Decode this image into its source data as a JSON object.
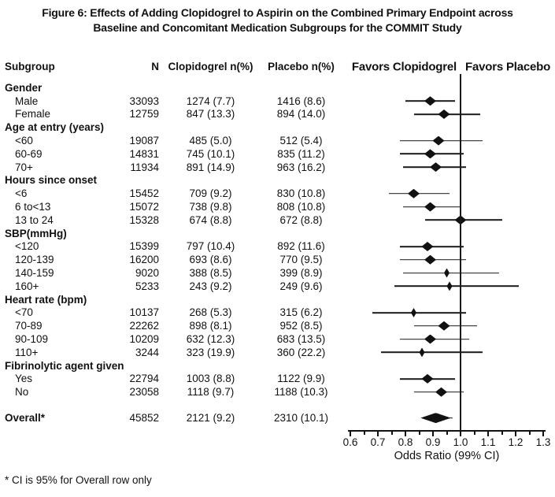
{
  "title": {
    "line1": "Figure 6: Effects of Adding Clopidogrel to Aspirin on the Combined Primary Endpoint across",
    "line2": "Baseline and Concomitant Medication Subgroups for the COMMIT Study"
  },
  "columns": {
    "subgroup": "Subgroup",
    "n": "N",
    "clopidogrel": "Clopidogrel n(%)",
    "placebo": "Placebo n(%)"
  },
  "favors": {
    "left": "Favors Clopidogrel",
    "right": "Favors Placebo"
  },
  "axis": {
    "label": "Odds Ratio (99% CI)",
    "min": 0.6,
    "max": 1.3,
    "major_ticks": [
      0.6,
      0.7,
      0.8,
      0.9,
      1.0,
      1.1,
      1.2,
      1.3
    ],
    "minor_step": 0.05,
    "reference": 1.0
  },
  "rows": [
    {
      "type": "group",
      "label": "Gender"
    },
    {
      "type": "item",
      "label": "Male",
      "n": "33093",
      "clopidogrel": "1274 (7.7)",
      "placebo": "1416 (8.6)",
      "or": 0.89,
      "lo": 0.8,
      "hi": 0.98,
      "size": "l"
    },
    {
      "type": "item",
      "label": "Female",
      "n": "12759",
      "clopidogrel": "847 (13.3)",
      "placebo": "894 (14.0)",
      "or": 0.94,
      "lo": 0.83,
      "hi": 1.07,
      "size": "l"
    },
    {
      "type": "group",
      "label": "Age at entry (years)"
    },
    {
      "type": "item",
      "label": "<60",
      "n": "19087",
      "clopidogrel": "485 (5.0)",
      "placebo": "512 (5.4)",
      "or": 0.92,
      "lo": 0.78,
      "hi": 1.08,
      "size": "l"
    },
    {
      "type": "item",
      "label": "60-69",
      "n": "14831",
      "clopidogrel": "745 (10.1)",
      "placebo": "835 (11.2)",
      "or": 0.89,
      "lo": 0.78,
      "hi": 1.01,
      "size": "l"
    },
    {
      "type": "item",
      "label": "70+",
      "n": "11934",
      "clopidogrel": "891 (14.9)",
      "placebo": "963 (16.2)",
      "or": 0.91,
      "lo": 0.79,
      "hi": 1.02,
      "size": "l"
    },
    {
      "type": "group",
      "label": "Hours since onset"
    },
    {
      "type": "item",
      "label": "<6",
      "n": "15452",
      "clopidogrel": "709 (9.2)",
      "placebo": "830 (10.8)",
      "or": 0.83,
      "lo": 0.74,
      "hi": 0.96,
      "size": "l"
    },
    {
      "type": "item",
      "label": "6 to<13",
      "n": "15072",
      "clopidogrel": "738 (9.8)",
      "placebo": "808 (10.8)",
      "or": 0.89,
      "lo": 0.79,
      "hi": 1.0,
      "size": "l"
    },
    {
      "type": "item",
      "label": "13 to 24",
      "n": "15328",
      "clopidogrel": "674 (8.8)",
      "placebo": "672 (8.8)",
      "or": 1.0,
      "lo": 0.87,
      "hi": 1.15,
      "size": "l"
    },
    {
      "type": "group",
      "label": "SBP(mmHg)"
    },
    {
      "type": "item",
      "label": "<120",
      "n": "15399",
      "clopidogrel": "797 (10.4)",
      "placebo": "892 (11.6)",
      "or": 0.88,
      "lo": 0.78,
      "hi": 1.01,
      "size": "l"
    },
    {
      "type": "item",
      "label": "120-139",
      "n": "16200",
      "clopidogrel": "693 (8.6)",
      "placebo": "770 (9.5)",
      "or": 0.89,
      "lo": 0.78,
      "hi": 1.02,
      "size": "l"
    },
    {
      "type": "item",
      "label": "140-159",
      "n": "9020",
      "clopidogrel": "388 (8.5)",
      "placebo": "399 (8.9)",
      "or": 0.95,
      "lo": 0.79,
      "hi": 1.14,
      "size": "s"
    },
    {
      "type": "item",
      "label": "160+",
      "n": "5233",
      "clopidogrel": "243 (9.2)",
      "placebo": "249 (9.6)",
      "or": 0.96,
      "lo": 0.76,
      "hi": 1.21,
      "size": "s"
    },
    {
      "type": "group",
      "label": "Heart rate (bpm)"
    },
    {
      "type": "item",
      "label": "<70",
      "n": "10137",
      "clopidogrel": "268 (5.3)",
      "placebo": "315 (6.2)",
      "or": 0.83,
      "lo": 0.68,
      "hi": 1.02,
      "size": "s"
    },
    {
      "type": "item",
      "label": "70-89",
      "n": "22262",
      "clopidogrel": "898 (8.1)",
      "placebo": "952 (8.5)",
      "or": 0.94,
      "lo": 0.83,
      "hi": 1.06,
      "size": "l"
    },
    {
      "type": "item",
      "label": "90-109",
      "n": "10209",
      "clopidogrel": "632 (12.3)",
      "placebo": "683 (13.5)",
      "or": 0.89,
      "lo": 0.78,
      "hi": 1.03,
      "size": "l"
    },
    {
      "type": "item",
      "label": "110+",
      "n": "3244",
      "clopidogrel": "323 (19.9)",
      "placebo": "360 (22.2)",
      "or": 0.86,
      "lo": 0.71,
      "hi": 1.08,
      "size": "s"
    },
    {
      "type": "group",
      "label": "Fibrinolytic agent given"
    },
    {
      "type": "item",
      "label": "Yes",
      "n": "22794",
      "clopidogrel": "1003 (8.8)",
      "placebo": "1122 (9.9)",
      "or": 0.88,
      "lo": 0.78,
      "hi": 0.98,
      "size": "l"
    },
    {
      "type": "item",
      "label": "No",
      "n": "23058",
      "clopidogrel": "1118 (9.7)",
      "placebo": "1188 (10.3)",
      "or": 0.93,
      "lo": 0.83,
      "hi": 1.01,
      "size": "l"
    }
  ],
  "overall": {
    "label": "Overall*",
    "n": "45852",
    "clopidogrel": "2121 (9.2)",
    "placebo": "2310 (10.1)",
    "or": 0.91,
    "lo": 0.86,
    "hi": 0.97
  },
  "footnote": "* CI is 95% for Overall row only",
  "colors": {
    "ink": "#111111",
    "background": "#ffffff"
  },
  "chart_data": {
    "type": "scatter",
    "variant": "forest-plot",
    "title": "Figure 6: Effects of Adding Clopidogrel to Aspirin on the Combined Primary Endpoint across Baseline and Concomitant Medication Subgroups for the COMMIT Study",
    "xlabel": "Odds Ratio (99% CI)",
    "xlim": [
      0.6,
      1.3
    ],
    "x_ticks": [
      0.6,
      0.7,
      0.8,
      0.9,
      1.0,
      1.1,
      1.2,
      1.3
    ],
    "reference_line": 1.0,
    "favors_left": "Favors Clopidogrel",
    "favors_right": "Favors Placebo",
    "legend_position": "none",
    "grid": false,
    "ci_level_note": "99% CI for subgroups; 95% CI for Overall row only",
    "points": [
      {
        "group": "Gender",
        "subgroup": "Male",
        "n": 33093,
        "clopidogrel_n_pct": "1274 (7.7)",
        "placebo_n_pct": "1416 (8.6)",
        "or": 0.89,
        "ci_low": 0.8,
        "ci_high": 0.98
      },
      {
        "group": "Gender",
        "subgroup": "Female",
        "n": 12759,
        "clopidogrel_n_pct": "847 (13.3)",
        "placebo_n_pct": "894 (14.0)",
        "or": 0.94,
        "ci_low": 0.83,
        "ci_high": 1.07
      },
      {
        "group": "Age at entry (years)",
        "subgroup": "<60",
        "n": 19087,
        "clopidogrel_n_pct": "485 (5.0)",
        "placebo_n_pct": "512 (5.4)",
        "or": 0.92,
        "ci_low": 0.78,
        "ci_high": 1.08
      },
      {
        "group": "Age at entry (years)",
        "subgroup": "60-69",
        "n": 14831,
        "clopidogrel_n_pct": "745 (10.1)",
        "placebo_n_pct": "835 (11.2)",
        "or": 0.89,
        "ci_low": 0.78,
        "ci_high": 1.01
      },
      {
        "group": "Age at entry (years)",
        "subgroup": "70+",
        "n": 11934,
        "clopidogrel_n_pct": "891 (14.9)",
        "placebo_n_pct": "963 (16.2)",
        "or": 0.91,
        "ci_low": 0.79,
        "ci_high": 1.02
      },
      {
        "group": "Hours since onset",
        "subgroup": "<6",
        "n": 15452,
        "clopidogrel_n_pct": "709 (9.2)",
        "placebo_n_pct": "830 (10.8)",
        "or": 0.83,
        "ci_low": 0.74,
        "ci_high": 0.96
      },
      {
        "group": "Hours since onset",
        "subgroup": "6 to<13",
        "n": 15072,
        "clopidogrel_n_pct": "738 (9.8)",
        "placebo_n_pct": "808 (10.8)",
        "or": 0.89,
        "ci_low": 0.79,
        "ci_high": 1.0
      },
      {
        "group": "Hours since onset",
        "subgroup": "13 to 24",
        "n": 15328,
        "clopidogrel_n_pct": "674 (8.8)",
        "placebo_n_pct": "672 (8.8)",
        "or": 1.0,
        "ci_low": 0.87,
        "ci_high": 1.15
      },
      {
        "group": "SBP(mmHg)",
        "subgroup": "<120",
        "n": 15399,
        "clopidogrel_n_pct": "797 (10.4)",
        "placebo_n_pct": "892 (11.6)",
        "or": 0.88,
        "ci_low": 0.78,
        "ci_high": 1.01
      },
      {
        "group": "SBP(mmHg)",
        "subgroup": "120-139",
        "n": 16200,
        "clopidogrel_n_pct": "693 (8.6)",
        "placebo_n_pct": "770 (9.5)",
        "or": 0.89,
        "ci_low": 0.78,
        "ci_high": 1.02
      },
      {
        "group": "SBP(mmHg)",
        "subgroup": "140-159",
        "n": 9020,
        "clopidogrel_n_pct": "388 (8.5)",
        "placebo_n_pct": "399 (8.9)",
        "or": 0.95,
        "ci_low": 0.79,
        "ci_high": 1.14
      },
      {
        "group": "SBP(mmHg)",
        "subgroup": "160+",
        "n": 5233,
        "clopidogrel_n_pct": "243 (9.2)",
        "placebo_n_pct": "249 (9.6)",
        "or": 0.96,
        "ci_low": 0.76,
        "ci_high": 1.21
      },
      {
        "group": "Heart rate (bpm)",
        "subgroup": "<70",
        "n": 10137,
        "clopidogrel_n_pct": "268 (5.3)",
        "placebo_n_pct": "315 (6.2)",
        "or": 0.83,
        "ci_low": 0.68,
        "ci_high": 1.02
      },
      {
        "group": "Heart rate (bpm)",
        "subgroup": "70-89",
        "n": 22262,
        "clopidogrel_n_pct": "898 (8.1)",
        "placebo_n_pct": "952 (8.5)",
        "or": 0.94,
        "ci_low": 0.83,
        "ci_high": 1.06
      },
      {
        "group": "Heart rate (bpm)",
        "subgroup": "90-109",
        "n": 10209,
        "clopidogrel_n_pct": "632 (12.3)",
        "placebo_n_pct": "683 (13.5)",
        "or": 0.89,
        "ci_low": 0.78,
        "ci_high": 1.03
      },
      {
        "group": "Heart rate (bpm)",
        "subgroup": "110+",
        "n": 3244,
        "clopidogrel_n_pct": "323 (19.9)",
        "placebo_n_pct": "360 (22.2)",
        "or": 0.86,
        "ci_low": 0.71,
        "ci_high": 1.08
      },
      {
        "group": "Fibrinolytic agent given",
        "subgroup": "Yes",
        "n": 22794,
        "clopidogrel_n_pct": "1003 (8.8)",
        "placebo_n_pct": "1122 (9.9)",
        "or": 0.88,
        "ci_low": 0.78,
        "ci_high": 0.98
      },
      {
        "group": "Fibrinolytic agent given",
        "subgroup": "No",
        "n": 23058,
        "clopidogrel_n_pct": "1118 (9.7)",
        "placebo_n_pct": "1188 (10.3)",
        "or": 0.93,
        "ci_low": 0.83,
        "ci_high": 1.01
      },
      {
        "group": "Overall",
        "subgroup": "Overall",
        "n": 45852,
        "clopidogrel_n_pct": "2121 (9.2)",
        "placebo_n_pct": "2310 (10.1)",
        "or": 0.91,
        "ci_low": 0.86,
        "ci_high": 0.97,
        "ci_level": "95%"
      }
    ]
  }
}
